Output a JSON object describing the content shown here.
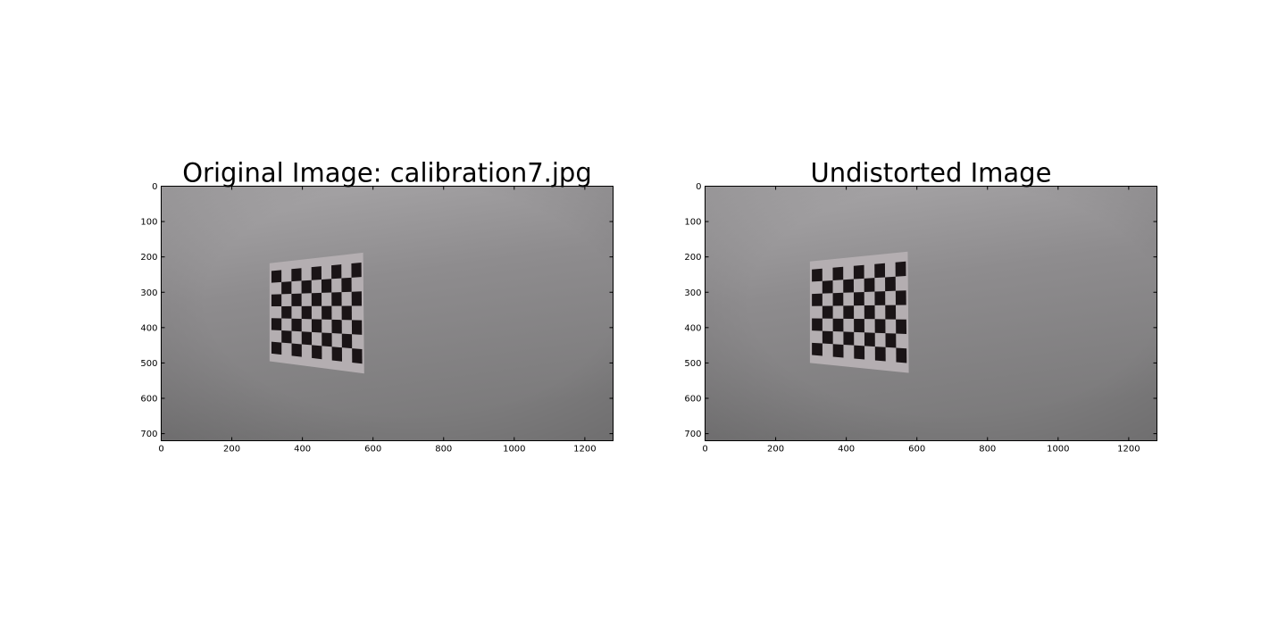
{
  "figure": {
    "background": "#ffffff",
    "panels": [
      {
        "title": "Original Image: calibration7.jpg",
        "kind": "image",
        "image_size": {
          "width": 1280,
          "height": 720
        },
        "xlim": [
          0,
          1280
        ],
        "ylim": [
          720,
          0
        ],
        "xticks": [
          0,
          200,
          400,
          600,
          800,
          1000,
          1200
        ],
        "yticks": [
          0,
          100,
          200,
          300,
          400,
          500,
          600,
          700
        ],
        "content": {
          "wall_color": "#8e8c8e",
          "wall_light": "#a9a7a9",
          "wall_dark": "#7c7b7c",
          "paper_color": "#b4aeb1",
          "square_color": "#1a1416",
          "board_corners": [
            [
              307,
              218
            ],
            [
              572,
              188
            ],
            [
              575,
              530
            ],
            [
              307,
              495
            ]
          ],
          "grid_rows": 7,
          "grid_cols": 9
        }
      },
      {
        "title": "Undistorted Image",
        "kind": "image",
        "image_size": {
          "width": 1280,
          "height": 720
        },
        "xlim": [
          0,
          1280
        ],
        "ylim": [
          720,
          0
        ],
        "xticks": [
          0,
          200,
          400,
          600,
          800,
          1000,
          1200
        ],
        "yticks": [
          0,
          100,
          200,
          300,
          400,
          500,
          600,
          700
        ],
        "content": {
          "wall_color": "#8e8c8e",
          "wall_light": "#a9a7a9",
          "wall_dark": "#7c7b7c",
          "paper_color": "#b4aeb1",
          "square_color": "#1a1416",
          "board_corners": [
            [
              297,
              213
            ],
            [
              574,
              185
            ],
            [
              577,
              528
            ],
            [
              297,
              500
            ]
          ],
          "grid_rows": 7,
          "grid_cols": 9
        }
      }
    ]
  }
}
